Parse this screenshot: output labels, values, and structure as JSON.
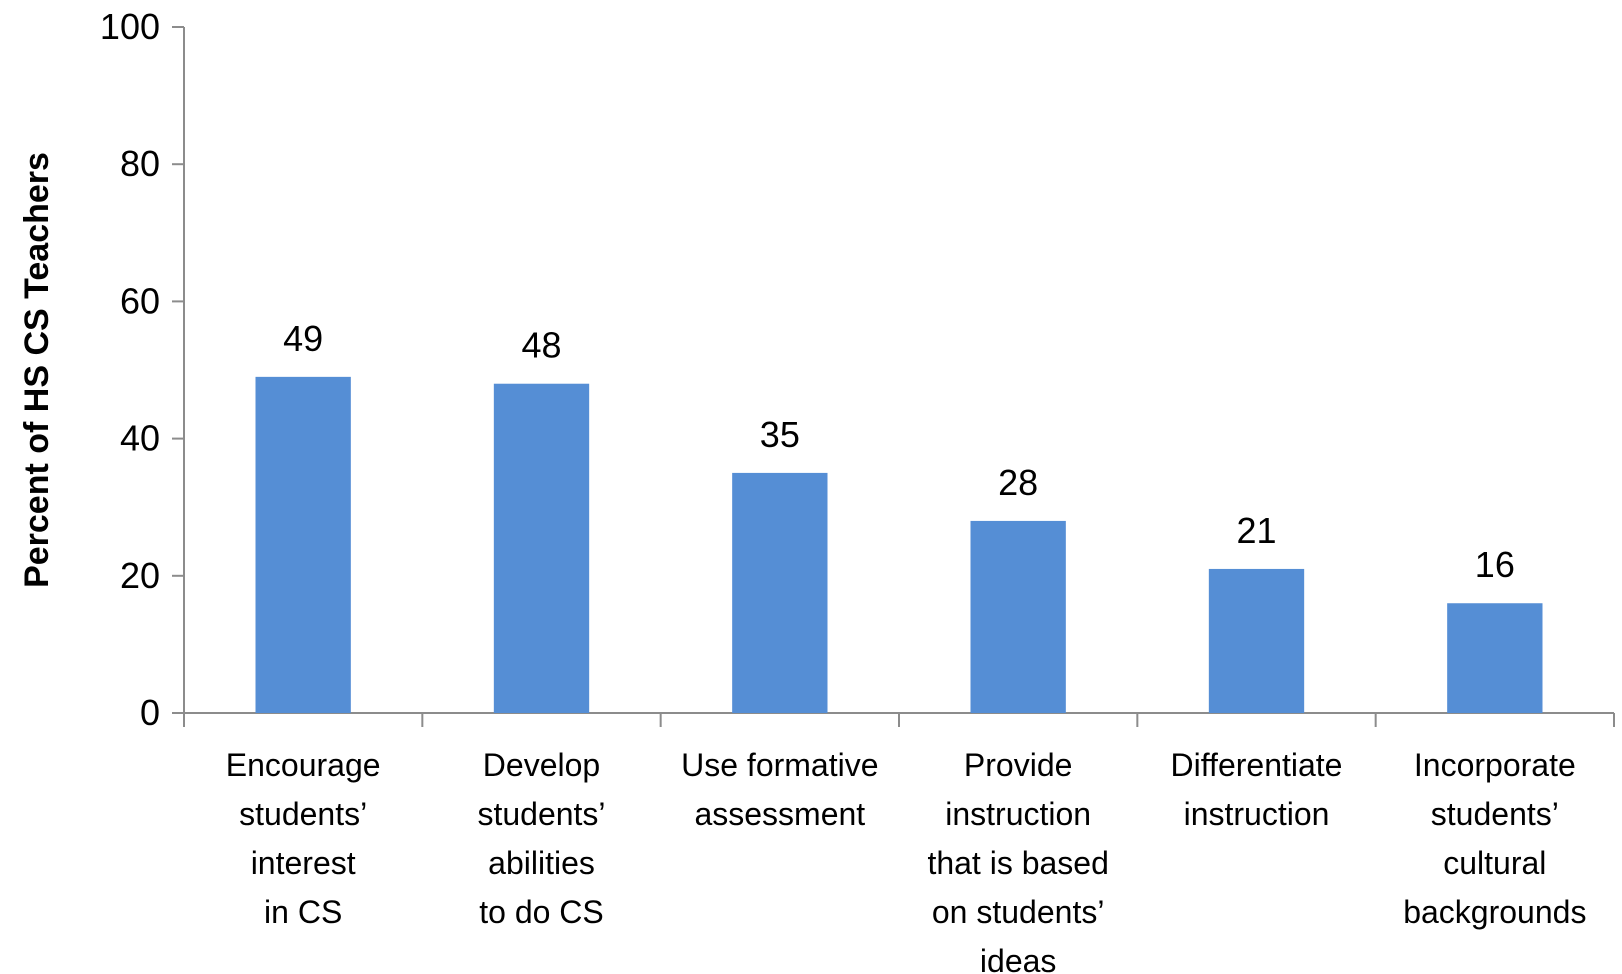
{
  "chart_data": {
    "type": "bar",
    "title": "",
    "xlabel": "",
    "ylabel": "Percent of HS CS Teachers",
    "ylim": [
      0,
      100
    ],
    "yticks": [
      0,
      20,
      40,
      60,
      80,
      100
    ],
    "grid": false,
    "legend": "none",
    "bar_color": "#558ED5",
    "categories": [
      "Encourage students’ interest in CS",
      "Develop students’ abilities to do CS",
      "Use formative assessment",
      "Provide instruction that is based on students’ ideas",
      "Differentiate instruction",
      "Incorporate students’ cultural backgrounds"
    ],
    "category_lines": [
      [
        "Encourage",
        "students’",
        "interest",
        "in CS"
      ],
      [
        "Develop",
        "students’",
        "abilities",
        "to do CS"
      ],
      [
        "Use formative",
        "assessment"
      ],
      [
        "Provide",
        "instruction",
        "that is based",
        "on students’",
        "ideas"
      ],
      [
        "Differentiate",
        "instruction"
      ],
      [
        "Incorporate",
        "students’",
        "cultural",
        "backgrounds"
      ]
    ],
    "values": [
      49,
      48,
      35,
      28,
      21,
      16
    ],
    "data_labels": [
      "49",
      "48",
      "35",
      "28",
      "21",
      "16"
    ]
  }
}
